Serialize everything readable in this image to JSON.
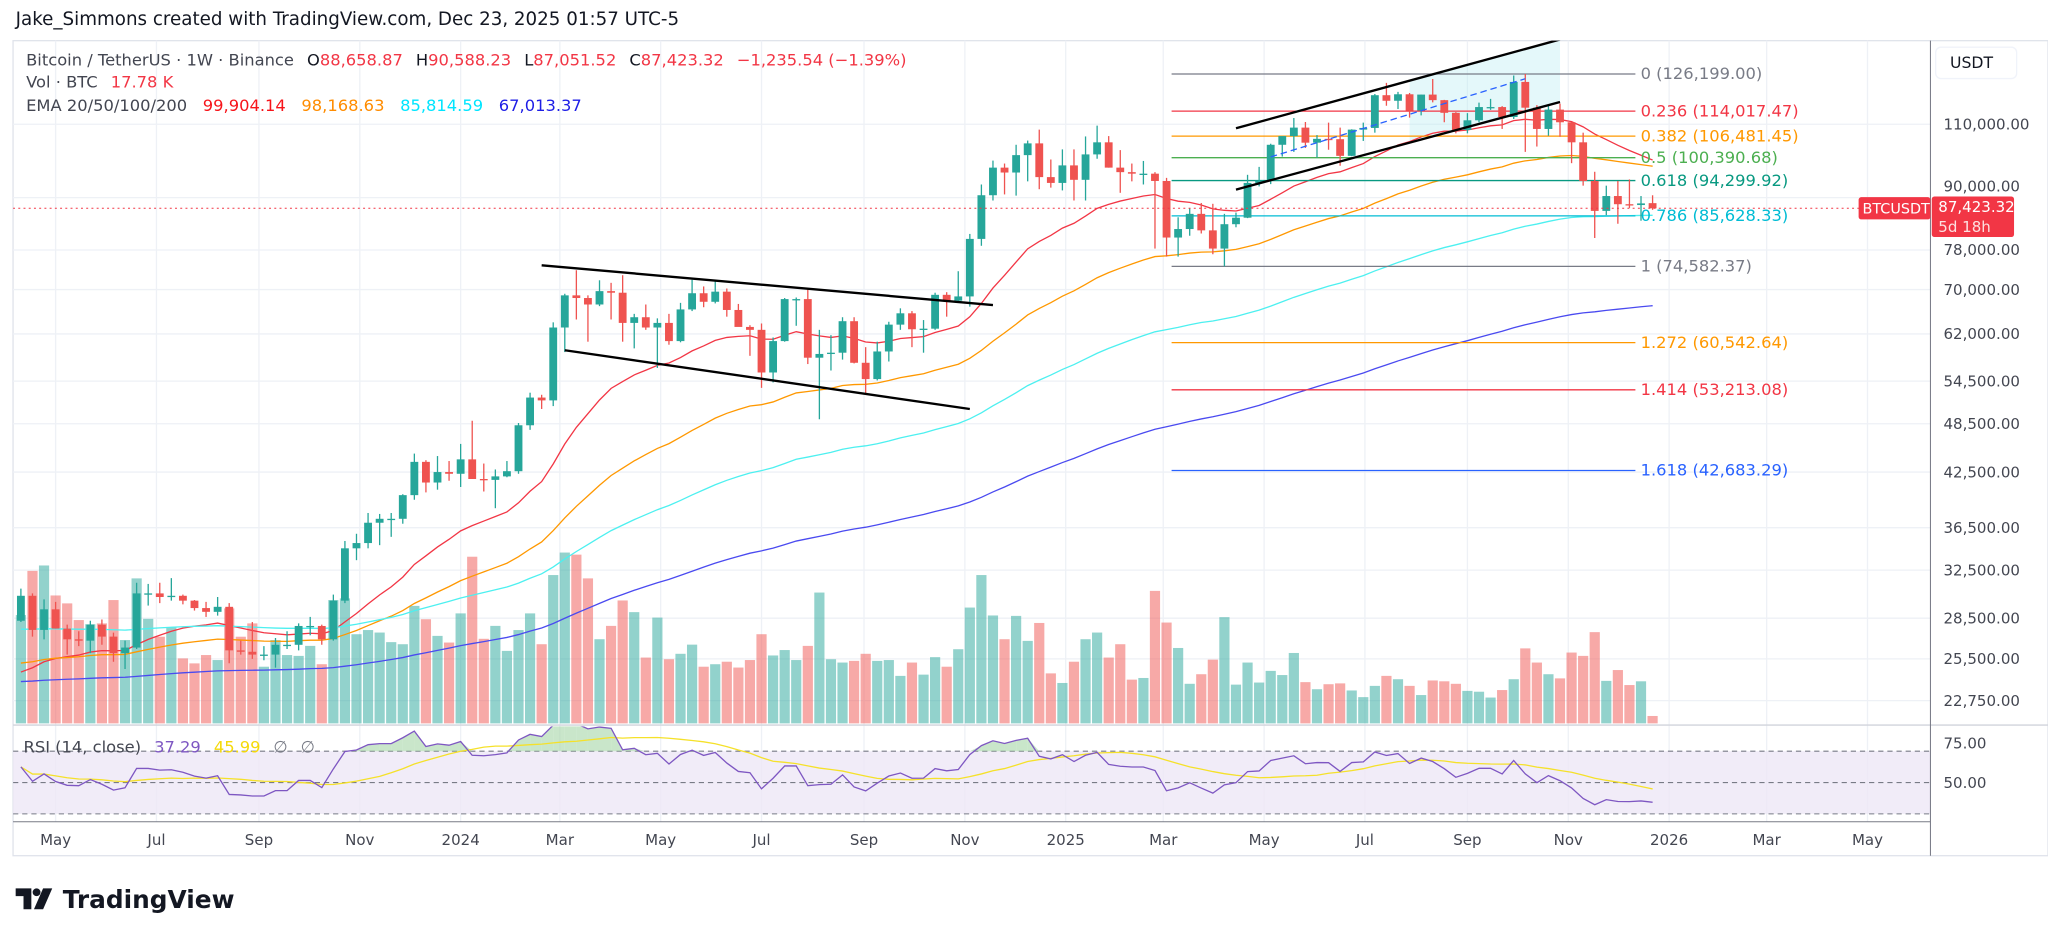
{
  "watermark": "Jake_Simmons created with TradingView.com, Dec 23, 2025 01:57 UTC-5",
  "legend": {
    "symbol": "Bitcoin / TetherUS · 1W · Binance",
    "o_label": "O",
    "o_value": "88,658.87",
    "h_label": "H",
    "h_value": "90,588.23",
    "l_label": "L",
    "l_value": "87,051.52",
    "c_label": "C",
    "c_value": "87,423.32",
    "change": "−1,235.54 (−1.39%)",
    "vol_label": "Vol · BTC",
    "vol_value": "17.78 K",
    "ema_label": "EMA 20/50/100/200",
    "ema_values": [
      "99,904.14",
      "98,168.63",
      "85,814.59",
      "67,013.37"
    ],
    "ema_colors": [
      "#f7141a",
      "#ff8c00",
      "#00e5ff",
      "#1e1ee6"
    ]
  },
  "rsi_legend": {
    "label": "RSI (14, close)",
    "value": "37.29",
    "ma_value": "45.99",
    "extra1": "∅",
    "extra2": "∅"
  },
  "price_axis": {
    "currency": "USDT",
    "ticks": [
      "110,000.00",
      "90,000.00",
      "78,000.00",
      "70,000.00",
      "62,000.00",
      "54,500.00",
      "48,500.00",
      "42,500.00",
      "36,500.00",
      "32,500.00",
      "28,500.00",
      "25,500.00",
      "22,750.00"
    ],
    "tick_values": [
      110000,
      90000,
      78000,
      70000,
      62000,
      54500,
      48500,
      42500,
      36500,
      32500,
      28500,
      25500,
      22750
    ],
    "last_price_label": "87,423.32",
    "countdown": "5d 18h",
    "symbol_badge": "BTCUSDT",
    "last_price": 87423.32
  },
  "rsi_axis": {
    "ticks": [
      "75.00",
      "50.00"
    ],
    "upper_band": 70,
    "middle": 50,
    "lower_band": 30
  },
  "time_axis": {
    "labels": [
      {
        "label": "May",
        "date": "2023-05-01"
      },
      {
        "label": "Jul",
        "date": "2023-07-01"
      },
      {
        "label": "Sep",
        "date": "2023-09-01"
      },
      {
        "label": "Nov",
        "date": "2023-11-01"
      },
      {
        "label": "2024",
        "date": "2024-01-01"
      },
      {
        "label": "Mar",
        "date": "2024-03-01"
      },
      {
        "label": "May",
        "date": "2024-05-01"
      },
      {
        "label": "Jul",
        "date": "2024-07-01"
      },
      {
        "label": "Sep",
        "date": "2024-09-01"
      },
      {
        "label": "Nov",
        "date": "2024-11-01"
      },
      {
        "label": "2025",
        "date": "2025-01-01"
      },
      {
        "label": "Mar",
        "date": "2025-03-01"
      },
      {
        "label": "May",
        "date": "2025-05-01"
      },
      {
        "label": "Jul",
        "date": "2025-07-01"
      },
      {
        "label": "Sep",
        "date": "2025-09-01"
      },
      {
        "label": "Nov",
        "date": "2025-11-01"
      },
      {
        "label": "2026",
        "date": "2026-01-01"
      },
      {
        "label": "Mar",
        "date": "2026-03-01"
      },
      {
        "label": "May",
        "date": "2026-05-01"
      }
    ]
  },
  "fib_levels": [
    {
      "label": "0 (126,199.00)",
      "price": 126199.0,
      "color": "#787b86"
    },
    {
      "label": "0.236 (114,017.47)",
      "price": 114017.47,
      "color": "#f23645"
    },
    {
      "label": "0.382 (106,481.45)",
      "price": 106481.45,
      "color": "#ff9800"
    },
    {
      "label": "0.5 (100,390.68)",
      "price": 100390.68,
      "color": "#4caf50"
    },
    {
      "label": "0.618 (94,299.92)",
      "price": 94299.92,
      "color": "#089981"
    },
    {
      "label": "0.786 (85,628.33)",
      "price": 85628.33,
      "color": "#00bcd4"
    },
    {
      "label": "1 (74,582.37)",
      "price": 74582.37,
      "color": "#787b86"
    },
    {
      "label": "1.272 (60,542.64)",
      "price": 60542.64,
      "color": "#ff9800"
    },
    {
      "label": "1.414 (53,213.08)",
      "price": 53213.08,
      "color": "#f23645"
    },
    {
      "label": "1.618 (42,683.29)",
      "price": 42683.29,
      "color": "#2962ff"
    }
  ],
  "fib_range": {
    "start": "2025-03-10",
    "end": "2025-11-10"
  },
  "trendlines": [
    {
      "name": "flag-upper",
      "from": [
        "2024-02-19",
        74800
      ],
      "to": [
        "2024-11-18",
        67100
      ],
      "color": "#000000",
      "dash": false
    },
    {
      "name": "flag-lower",
      "from": [
        "2024-03-04",
        59300
      ],
      "to": [
        "2024-11-04",
        50500
      ],
      "color": "#000000",
      "dash": false
    },
    {
      "name": "channel-upper",
      "from": [
        "2025-04-14",
        108800
      ],
      "to": [
        "2025-10-27",
        138700
      ],
      "color": "#000000",
      "dash": false
    },
    {
      "name": "channel-lower",
      "from": [
        "2025-04-14",
        92000
      ],
      "to": [
        "2025-10-27",
        116900
      ],
      "color": "#000000",
      "dash": false
    },
    {
      "name": "channel-mid",
      "from": [
        "2025-05-05",
        100600
      ],
      "to": [
        "2025-10-06",
        124600
      ],
      "color": "#2962ff",
      "dash": true
    }
  ],
  "channel_shade": {
    "from": "2025-07-28",
    "to": "2025-10-27",
    "color": "#b2ebf2"
  },
  "colors": {
    "up": "#26a69a",
    "down": "#ef5350",
    "rsi": "#7e57c2",
    "rsi_ma": "#ffeb3b",
    "rsi_band": "#ede7f6"
  },
  "branding": {
    "logo_text": "TradingView"
  },
  "chart_data": {
    "type": "candlestick",
    "interval": "1W",
    "scale": "log",
    "first_week": "2023-04-10",
    "ylim": [
      21000,
      145000
    ],
    "grid": true,
    "candles_ohlc": [
      [
        28300,
        30900,
        28200,
        30300
      ],
      [
        30300,
        30500,
        27100,
        27600
      ],
      [
        27600,
        30000,
        26900,
        29200
      ],
      [
        29200,
        29800,
        27700,
        27700
      ],
      [
        27700,
        28000,
        25800,
        26900
      ],
      [
        26900,
        27500,
        26400,
        26800
      ],
      [
        26800,
        28300,
        25900,
        28000
      ],
      [
        28000,
        28400,
        26500,
        27100
      ],
      [
        27100,
        27400,
        25300,
        25900
      ],
      [
        25900,
        26800,
        24800,
        26300
      ],
      [
        26300,
        31400,
        26200,
        30500
      ],
      [
        30500,
        31300,
        29500,
        30500
      ],
      [
        30500,
        31400,
        29700,
        30200
      ],
      [
        30200,
        31800,
        29900,
        30300
      ],
      [
        30300,
        30400,
        29600,
        29900
      ],
      [
        29900,
        29950,
        29100,
        29300
      ],
      [
        29300,
        29800,
        28600,
        29000
      ],
      [
        29000,
        30200,
        28700,
        29400
      ],
      [
        29400,
        29700,
        25200,
        26100
      ],
      [
        26100,
        26800,
        25800,
        26000
      ],
      [
        26000,
        28200,
        25500,
        25800
      ],
      [
        25800,
        26400,
        25400,
        25800
      ],
      [
        25800,
        27000,
        24900,
        26500
      ],
      [
        26500,
        27500,
        26200,
        26500
      ],
      [
        26500,
        28100,
        26100,
        27900
      ],
      [
        27900,
        28600,
        27200,
        27900
      ],
      [
        27900,
        28000,
        26500,
        26900
      ],
      [
        26900,
        30400,
        26800,
        29900
      ],
      [
        29900,
        35200,
        29700,
        34500
      ],
      [
        34500,
        35900,
        33400,
        35000
      ],
      [
        35000,
        38000,
        34500,
        37000
      ],
      [
        37000,
        37900,
        34800,
        37400
      ],
      [
        37400,
        38000,
        35600,
        37400
      ],
      [
        37400,
        40000,
        36900,
        39900
      ],
      [
        39900,
        44700,
        39400,
        43700
      ],
      [
        43700,
        43900,
        40200,
        41300
      ],
      [
        41300,
        44400,
        40500,
        42500
      ],
      [
        42500,
        43800,
        41500,
        42300
      ],
      [
        42300,
        45900,
        40800,
        44000
      ],
      [
        44000,
        48900,
        41700,
        41700
      ],
      [
        41700,
        43500,
        40300,
        41600
      ],
      [
        41600,
        42800,
        38500,
        42000
      ],
      [
        42000,
        43800,
        41900,
        42600
      ],
      [
        42600,
        48600,
        42300,
        48300
      ],
      [
        48300,
        52800,
        47700,
        52100
      ],
      [
        52100,
        52500,
        50500,
        51700
      ],
      [
        51700,
        64000,
        50900,
        63100
      ],
      [
        63100,
        69200,
        59000,
        68900
      ],
      [
        68900,
        73800,
        64500,
        68400
      ],
      [
        68400,
        68900,
        60700,
        67200
      ],
      [
        67200,
        71800,
        66900,
        69700
      ],
      [
        69700,
        71300,
        64500,
        69400
      ],
      [
        69400,
        72800,
        60700,
        63900
      ],
      [
        63900,
        65500,
        59600,
        64900
      ],
      [
        64900,
        67200,
        62700,
        63100
      ],
      [
        63100,
        64700,
        56500,
        63900
      ],
      [
        63900,
        65500,
        60200,
        60800
      ],
      [
        60800,
        67500,
        60600,
        66300
      ],
      [
        66300,
        71900,
        66000,
        69300
      ],
      [
        69300,
        70600,
        66700,
        67700
      ],
      [
        67700,
        71900,
        67400,
        69600
      ],
      [
        69600,
        70200,
        65000,
        66200
      ],
      [
        66200,
        67300,
        63400,
        63200
      ],
      [
        63200,
        63500,
        58400,
        62700
      ],
      [
        62700,
        63800,
        53500,
        55800
      ],
      [
        55800,
        61400,
        54300,
        60800
      ],
      [
        60800,
        68400,
        60700,
        68200
      ],
      [
        68200,
        68500,
        63400,
        68200
      ],
      [
        68200,
        70000,
        57100,
        58100
      ],
      [
        58100,
        62700,
        49100,
        58700
      ],
      [
        58700,
        61800,
        56100,
        58900
      ],
      [
        58900,
        64900,
        57800,
        64200
      ],
      [
        64200,
        64900,
        57200,
        57300
      ],
      [
        57300,
        59800,
        52500,
        54800
      ],
      [
        54800,
        60700,
        54600,
        59100
      ],
      [
        59100,
        64100,
        57500,
        63600
      ],
      [
        63600,
        66500,
        62700,
        65600
      ],
      [
        65600,
        66000,
        59800,
        62800
      ],
      [
        62800,
        64400,
        58900,
        62900
      ],
      [
        62900,
        69400,
        62700,
        69000
      ],
      [
        69000,
        69500,
        65000,
        67900
      ],
      [
        67900,
        73600,
        67500,
        68700
      ],
      [
        68700,
        81500,
        66800,
        80400
      ],
      [
        80400,
        93300,
        78900,
        90600
      ],
      [
        90600,
        99600,
        89300,
        97700
      ],
      [
        97700,
        98800,
        90800,
        96400
      ],
      [
        96400,
        104000,
        90500,
        101100
      ],
      [
        101100,
        105200,
        94100,
        104400
      ],
      [
        104400,
        108400,
        92100,
        95200
      ],
      [
        95200,
        99900,
        92500,
        93700
      ],
      [
        93700,
        102700,
        91800,
        98300
      ],
      [
        98300,
        102700,
        89300,
        94500
      ],
      [
        94500,
        106400,
        89300,
        101300
      ],
      [
        101300,
        109600,
        100100,
        104700
      ],
      [
        104700,
        106500,
        97700,
        97700
      ],
      [
        97700,
        102500,
        91200,
        96500
      ],
      [
        96500,
        98800,
        94100,
        96100
      ],
      [
        96100,
        99500,
        93300,
        96100
      ],
      [
        96100,
        96500,
        78300,
        94200
      ],
      [
        94200,
        95000,
        76600,
        80700
      ],
      [
        80700,
        85300,
        76600,
        82600
      ],
      [
        82600,
        87500,
        81100,
        86100
      ],
      [
        86100,
        88700,
        81600,
        82300
      ],
      [
        82300,
        88500,
        77100,
        78300
      ],
      [
        78300,
        86100,
        74600,
        83700
      ],
      [
        83700,
        86400,
        83000,
        85200
      ],
      [
        85200,
        95800,
        85100,
        93700
      ],
      [
        93700,
        97900,
        92800,
        94300
      ],
      [
        94300,
        104300,
        93400,
        104000
      ],
      [
        104000,
        105800,
        100700,
        106500
      ],
      [
        106500,
        111900,
        102000,
        109000
      ],
      [
        109000,
        110700,
        103100,
        104600
      ],
      [
        104600,
        106800,
        100400,
        105700
      ],
      [
        105700,
        110500,
        102600,
        105600
      ],
      [
        105600,
        109000,
        98200,
        100900
      ],
      [
        100900,
        108500,
        100800,
        108400
      ],
      [
        108400,
        110500,
        105100,
        108900
      ],
      [
        108900,
        119500,
        107500,
        119100
      ],
      [
        119100,
        123200,
        115700,
        117300
      ],
      [
        117300,
        120200,
        114700,
        119400
      ],
      [
        119400,
        119800,
        112000,
        114200
      ],
      [
        114200,
        119300,
        112700,
        119300
      ],
      [
        119300,
        124500,
        116800,
        117500
      ],
      [
        117500,
        117600,
        110600,
        113500
      ],
      [
        113500,
        113700,
        107300,
        108300
      ],
      [
        108300,
        113400,
        107300,
        111200
      ],
      [
        111200,
        116700,
        110600,
        115300
      ],
      [
        115300,
        117900,
        114400,
        115300
      ],
      [
        115300,
        115600,
        108600,
        112200
      ],
      [
        112200,
        125700,
        111600,
        123500
      ],
      [
        123500,
        126200,
        102000,
        115100
      ],
      [
        115100,
        115900,
        103500,
        108600
      ],
      [
        108600,
        116100,
        106600,
        114500
      ],
      [
        114500,
        116400,
        106300,
        110600
      ],
      [
        110600,
        110700,
        98900,
        104700
      ],
      [
        104700,
        107500,
        93000,
        94200
      ],
      [
        94200,
        96600,
        80600,
        86800
      ],
      [
        86800,
        93000,
        85800,
        90400
      ],
      [
        90400,
        94200,
        83800,
        88400
      ],
      [
        88400,
        94600,
        87500,
        88200
      ],
      [
        88200,
        90400,
        84500,
        88600
      ],
      [
        88658.87,
        90588.23,
        87051.52,
        87423.32
      ]
    ],
    "volume_k_btc": [
      260,
      366,
      379,
      307,
      288,
      248,
      238,
      240,
      296,
      200,
      348,
      251,
      208,
      230,
      156,
      144,
      164,
      152,
      276,
      208,
      240,
      136,
      200,
      164,
      162,
      186,
      142,
      296,
      300,
      214,
      224,
      218,
      195,
      190,
      282,
      250,
      210,
      194,
      264,
      400,
      203,
      234,
      174,
      224,
      264,
      190,
      356,
      410,
      405,
      348,
      202,
      234,
      295,
      267,
      158,
      254,
      154,
      167,
      189,
      136,
      142,
      148,
      134,
      152,
      214,
      163,
      176,
      152,
      186,
      314,
      154,
      146,
      150,
      167,
      150,
      152,
      114,
      146,
      117,
      159,
      136,
      178,
      278,
      356,
      259,
      202,
      258,
      198,
      241,
      120,
      97,
      148,
      202,
      218,
      158,
      190,
      105,
      109,
      318,
      242,
      181,
      95,
      118,
      153,
      255,
      93,
      146,
      98,
      126,
      116,
      169,
      99,
      82,
      94,
      96,
      79,
      63,
      90,
      114,
      106,
      90,
      68,
      103,
      101,
      95,
      78,
      76,
      62,
      80,
      106,
      180,
      146,
      118,
      108,
      170,
      162,
      219,
      102,
      128,
      92,
      101,
      17.78
    ],
    "ema_periods": [
      20,
      50,
      100,
      200
    ],
    "rsi_period": 14,
    "rsi_ma_period": 14
  }
}
